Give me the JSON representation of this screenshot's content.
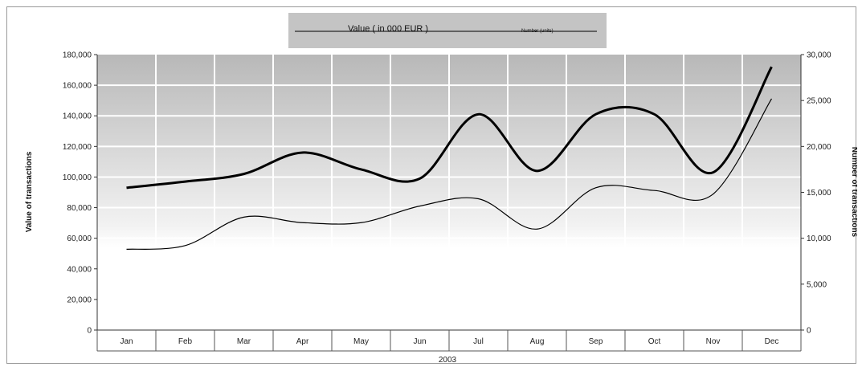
{
  "chart_data": {
    "type": "line",
    "categories": [
      "Jan",
      "Feb",
      "Mar",
      "Apr",
      "May",
      "Jun",
      "Jul",
      "Aug",
      "Sep",
      "Oct",
      "Nov",
      "Dec"
    ],
    "xlabel": "2003",
    "y_left": {
      "label": "Value of transactions",
      "lim": [
        0,
        180000
      ],
      "ticks": [
        0,
        20000,
        40000,
        60000,
        80000,
        100000,
        120000,
        140000,
        160000,
        180000
      ]
    },
    "y_right": {
      "label": "Number of transactions",
      "lim": [
        0,
        30000
      ],
      "ticks": [
        0,
        5000,
        10000,
        15000,
        20000,
        25000,
        30000
      ]
    },
    "series": [
      {
        "name": "Value ( in 000 EUR )",
        "axis": "left",
        "values": [
          93000,
          97000,
          102000,
          116000,
          105000,
          99000,
          141000,
          104000,
          141000,
          141000,
          103000,
          172000
        ]
      },
      {
        "name": "Number (units)",
        "axis": "right",
        "values": [
          8800,
          9200,
          12300,
          11700,
          11700,
          13500,
          14300,
          11000,
          15500,
          15200,
          14800,
          25200
        ]
      }
    ],
    "legend": "top-center",
    "grid": true
  },
  "style": {
    "plot_gradient_top": "#b8b8b8",
    "plot_gradient_bottom": "#ffffff",
    "legend_bg": "#c4c4c4",
    "value_line_color": "#000000",
    "number_line_color": "#000000"
  }
}
